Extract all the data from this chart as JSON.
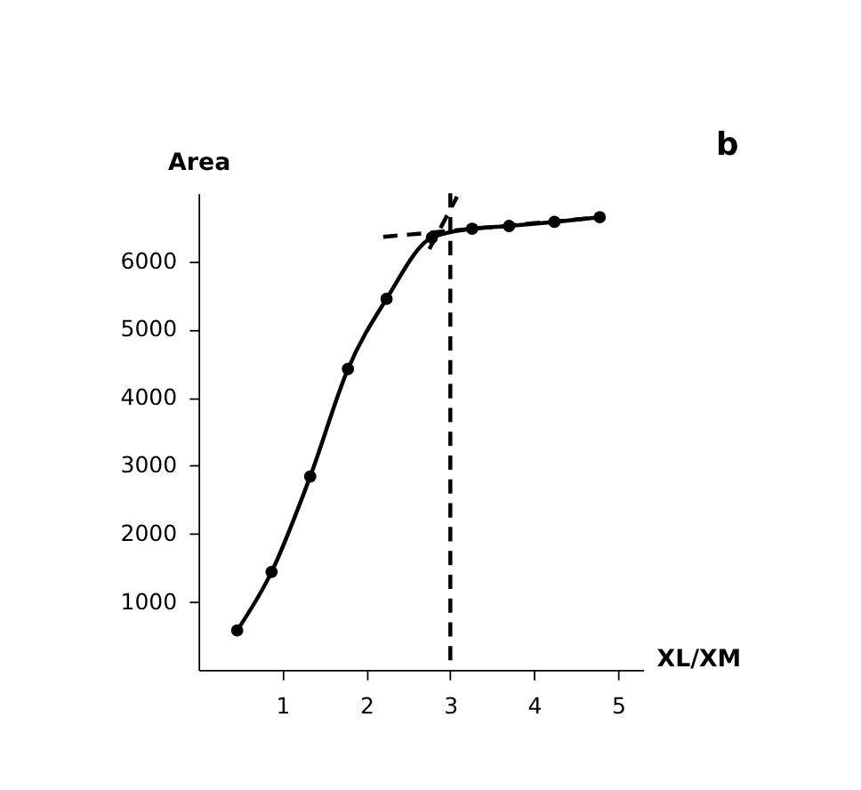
{
  "chart_data": {
    "type": "line",
    "xlabel": "XL/XM",
    "ylabel": "Area",
    "annotations": [
      "b"
    ],
    "xlim": [
      0,
      5.3
    ],
    "xticks": [
      1,
      2,
      3,
      4,
      5
    ],
    "ylim": [
      0,
      7000
    ],
    "yticks": [
      1000,
      2000,
      3000,
      4000,
      5000,
      6000
    ],
    "grid": false,
    "marker": "circle",
    "line_style": "solid",
    "series": [
      {
        "color": "#000000",
        "x": [
          0.46,
          0.87,
          1.33,
          1.78,
          2.24,
          2.78,
          3.26,
          3.7,
          4.24,
          4.78
        ],
        "values": [
          580,
          1440,
          2840,
          4420,
          5450,
          6350,
          6480,
          6520,
          6580,
          6650
        ]
      },
      {
        "color": "#000000",
        "marker": "none",
        "line_style": "dashed",
        "x": [
          2.2,
          4.8
        ],
        "values": [
          6360,
          6650
        ]
      },
      {
        "color": "#000000",
        "marker": "none",
        "line_style": "dashed",
        "x": [
          2.75,
          3.08
        ],
        "values": [
          6180,
          6950
        ]
      }
    ],
    "ref_lines": [
      {
        "axis": "x",
        "value": 3,
        "color": "#000000",
        "line_style": "dashed"
      }
    ]
  }
}
